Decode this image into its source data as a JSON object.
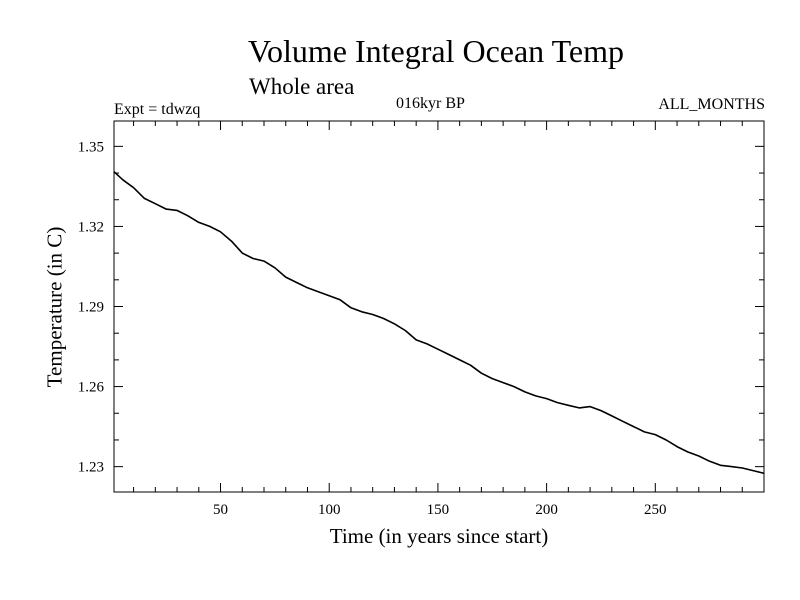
{
  "chart_data": {
    "type": "line",
    "title": "Volume Integral Ocean Temp",
    "subtitle": "Whole area",
    "header_left": "Expt = tdwzq",
    "header_center": "016kyr BP",
    "header_right": "ALL_MONTHS",
    "xlabel": "Time (in years since start)",
    "ylabel": "Temperature (in C)",
    "xlim": [
      1,
      300
    ],
    "ylim": [
      1.2205,
      1.3595
    ],
    "x_ticks": [
      50,
      100,
      150,
      200,
      250
    ],
    "y_ticks": [
      1.23,
      1.26,
      1.29,
      1.32,
      1.35
    ],
    "x_tick_labels": [
      "50",
      "100",
      "150",
      "200",
      "250"
    ],
    "y_tick_labels": [
      "1.23",
      "1.26",
      "1.29",
      "1.32",
      "1.35"
    ],
    "grid": false,
    "legend": "none",
    "series": [
      {
        "color": "#000000",
        "x": [
          1,
          5,
          10,
          15,
          20,
          25,
          30,
          35,
          40,
          45,
          50,
          55,
          60,
          65,
          70,
          75,
          80,
          85,
          90,
          95,
          100,
          105,
          110,
          115,
          120,
          125,
          130,
          135,
          140,
          145,
          150,
          155,
          160,
          165,
          170,
          175,
          180,
          185,
          190,
          195,
          200,
          205,
          210,
          215,
          220,
          225,
          230,
          235,
          240,
          245,
          250,
          255,
          260,
          265,
          270,
          275,
          280,
          285,
          290,
          295,
          300
        ],
        "y": [
          1.3405,
          1.3375,
          1.3345,
          1.3305,
          1.3285,
          1.3265,
          1.326,
          1.324,
          1.3215,
          1.32,
          1.318,
          1.3145,
          1.31,
          1.308,
          1.307,
          1.3045,
          1.301,
          1.299,
          1.297,
          1.2955,
          1.294,
          1.2925,
          1.2895,
          1.288,
          1.287,
          1.2855,
          1.2835,
          1.281,
          1.2775,
          1.276,
          1.274,
          1.272,
          1.27,
          1.268,
          1.265,
          1.263,
          1.2615,
          1.26,
          1.258,
          1.2565,
          1.2555,
          1.254,
          1.253,
          1.252,
          1.2525,
          1.251,
          1.249,
          1.247,
          1.245,
          1.243,
          1.242,
          1.24,
          1.2375,
          1.2355,
          1.234,
          1.232,
          1.2305,
          1.23,
          1.2295,
          1.2285,
          1.2275
        ]
      }
    ]
  }
}
